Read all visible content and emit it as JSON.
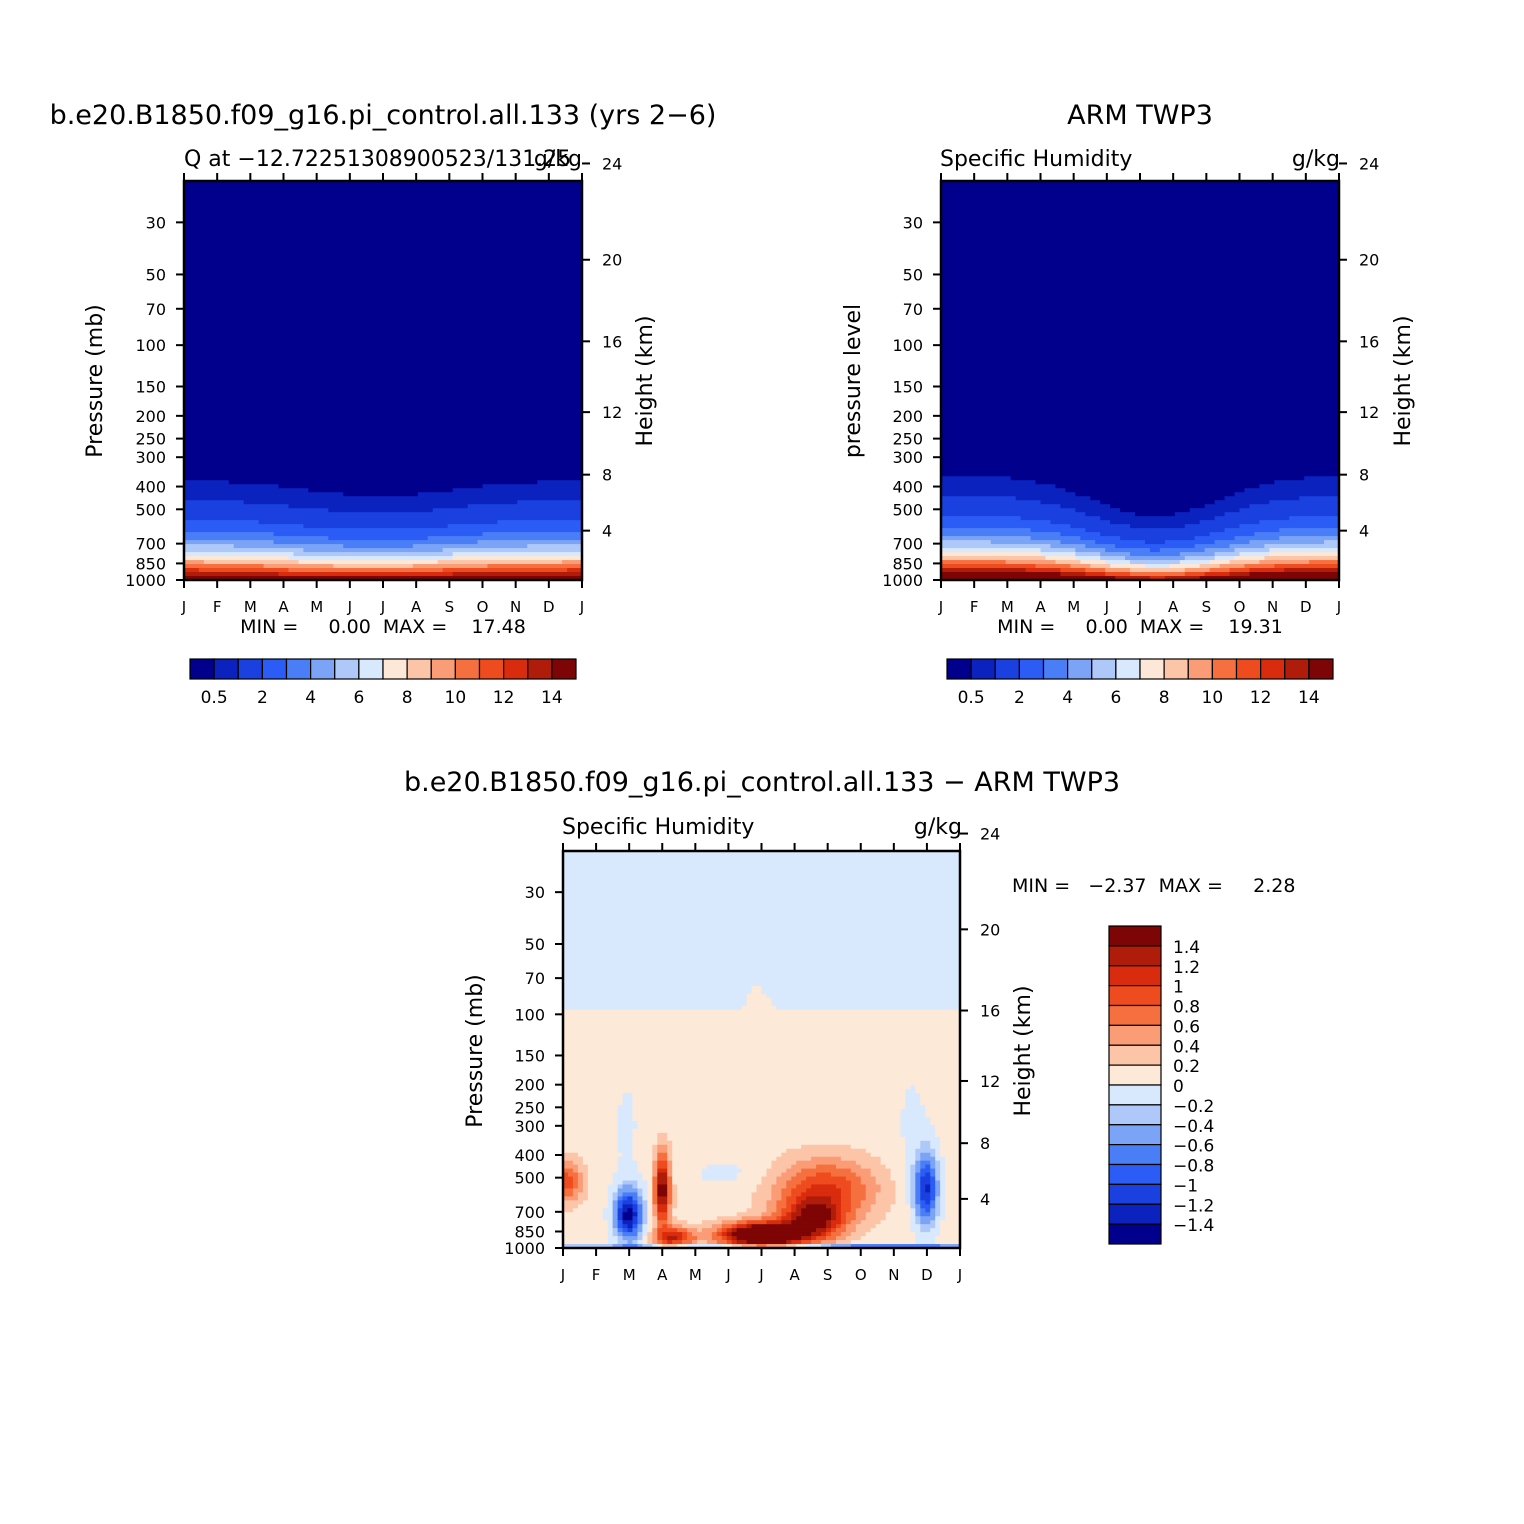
{
  "colors": {
    "abs_scale": [
      "#00008c",
      "#0b22be",
      "#1a40e0",
      "#2b5cf5",
      "#4a7ef7",
      "#7ba4f6",
      "#aec9f9",
      "#d8e9fd",
      "#fde7d7",
      "#fcc5a8",
      "#fa9c76",
      "#f6703f",
      "#ee4b1e",
      "#d92b0d",
      "#b01c0a",
      "#7e0505"
    ],
    "diff_scale": [
      "#00008c",
      "#0b22be",
      "#1a40e0",
      "#2b5cf5",
      "#4a7ef7",
      "#7ba4f6",
      "#aec9f9",
      "#d8e9fd",
      "#fde9d8",
      "#fcc5a8",
      "#fa9c76",
      "#f6703f",
      "#ee4b1e",
      "#d92b0d",
      "#b01c0a",
      "#7e0505"
    ]
  },
  "chart_data": [
    {
      "type": "heatmap",
      "title": "b.e20.B1850.f09_g16.pi_control.all.133 (yrs 2−6)",
      "subtitle_left": "Q at −12.72251308900523/131.25",
      "subtitle_right": "g/kg",
      "ylabel": "Pressure (mb)",
      "ylabel_right": "Height (km)",
      "x_ticks": [
        "J",
        "F",
        "M",
        "A",
        "M",
        "J",
        "J",
        "A",
        "S",
        "O",
        "N",
        "D",
        "J"
      ],
      "y_ticks": [
        "30",
        "50",
        "70",
        "100",
        "150",
        "200",
        "250",
        "300",
        "400",
        "500",
        "700",
        "850",
        "1000"
      ],
      "y_values": [
        30,
        50,
        70,
        100,
        150,
        200,
        250,
        300,
        400,
        500,
        700,
        850,
        1000
      ],
      "ylim": [
        20,
        1000
      ],
      "y_scale": "log",
      "y_right_ticks": [
        "24",
        "20",
        "16",
        "12",
        "8",
        "4"
      ],
      "y_right_values": [
        24,
        20,
        16,
        12,
        8,
        4
      ],
      "min_max_text": "MIN =     0.00  MAX =    17.48",
      "colorbar_labels": [
        "0.5",
        "2",
        "4",
        "6",
        "8",
        "10",
        "12",
        "14"
      ],
      "levels": [
        0.5,
        1,
        2,
        3,
        4,
        5,
        6,
        7,
        8,
        9,
        10,
        11,
        12,
        13,
        14
      ],
      "min": 0.0,
      "max": 17.48
    },
    {
      "type": "heatmap",
      "title": "ARM TWP3",
      "subtitle_left": "Specific Humidity",
      "subtitle_right": "g/kg",
      "ylabel": "pressure level",
      "ylabel_right": "Height (km)",
      "x_ticks": [
        "J",
        "F",
        "M",
        "A",
        "M",
        "J",
        "J",
        "A",
        "S",
        "O",
        "N",
        "D",
        "J"
      ],
      "y_ticks": [
        "30",
        "50",
        "70",
        "100",
        "150",
        "200",
        "250",
        "300",
        "400",
        "500",
        "700",
        "850",
        "1000"
      ],
      "y_values": [
        30,
        50,
        70,
        100,
        150,
        200,
        250,
        300,
        400,
        500,
        700,
        850,
        1000
      ],
      "ylim": [
        20,
        1000
      ],
      "y_scale": "log",
      "y_right_ticks": [
        "24",
        "20",
        "16",
        "12",
        "8",
        "4"
      ],
      "y_right_values": [
        24,
        20,
        16,
        12,
        8,
        4
      ],
      "min_max_text": "MIN =     0.00  MAX =    19.31",
      "colorbar_labels": [
        "0.5",
        "2",
        "4",
        "6",
        "8",
        "10",
        "12",
        "14"
      ],
      "levels": [
        0.5,
        1,
        2,
        3,
        4,
        5,
        6,
        7,
        8,
        9,
        10,
        11,
        12,
        13,
        14
      ],
      "min": 0.0,
      "max": 19.31
    },
    {
      "type": "heatmap",
      "title": "b.e20.B1850.f09_g16.pi_control.all.133 − ARM TWP3",
      "subtitle_left": "Specific Humidity",
      "subtitle_right": "g/kg",
      "ylabel": "Pressure (mb)",
      "ylabel_right": "Height (km)",
      "x_ticks": [
        "J",
        "F",
        "M",
        "A",
        "M",
        "J",
        "J",
        "A",
        "S",
        "O",
        "N",
        "D",
        "J"
      ],
      "y_ticks": [
        "30",
        "50",
        "70",
        "100",
        "150",
        "200",
        "250",
        "300",
        "400",
        "500",
        "700",
        "850",
        "1000"
      ],
      "y_values": [
        30,
        50,
        70,
        100,
        150,
        200,
        250,
        300,
        400,
        500,
        700,
        850,
        1000
      ],
      "ylim": [
        20,
        1000
      ],
      "y_scale": "log",
      "y_right_ticks": [
        "24",
        "20",
        "16",
        "12",
        "8",
        "4"
      ],
      "y_right_values": [
        24,
        20,
        16,
        12,
        8,
        4
      ],
      "min_max_text": "MIN =   −2.37  MAX =     2.28",
      "colorbar_labels": [
        "1.4",
        "1.2",
        "1",
        "0.8",
        "0.6",
        "0.4",
        "0.2",
        "0",
        "−0.2",
        "−0.4",
        "−0.6",
        "−0.8",
        "−1",
        "−1.2",
        "−1.4"
      ],
      "levels": [
        -1.4,
        -1.2,
        -1,
        -0.8,
        -0.6,
        -0.4,
        -0.2,
        0,
        0.2,
        0.4,
        0.6,
        0.8,
        1,
        1.2,
        1.4
      ],
      "min": -2.37,
      "max": 2.28
    }
  ]
}
